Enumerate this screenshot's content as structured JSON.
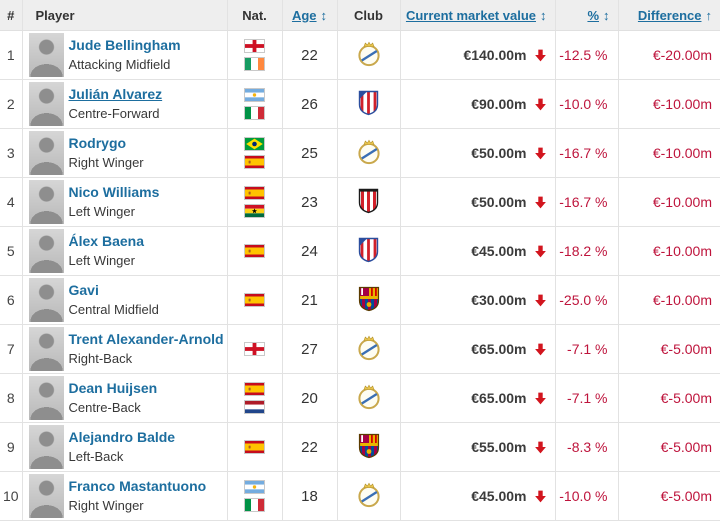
{
  "colors": {
    "link_blue": "#1d6e9f",
    "negative_red": "#be143c",
    "trend_arrow_red": "#d2151e",
    "header_bg": "#eeeeee",
    "row_border": "#e2e2e2"
  },
  "table": {
    "columns": [
      {
        "key": "rank",
        "label": "#",
        "sortable": false
      },
      {
        "key": "player",
        "label": "Player",
        "sortable": false
      },
      {
        "key": "nat",
        "label": "Nat.",
        "sortable": false
      },
      {
        "key": "age",
        "label": "Age",
        "sortable": true,
        "sort_glyph": "updown"
      },
      {
        "key": "club",
        "label": "Club",
        "sortable": false
      },
      {
        "key": "value",
        "label": "Current market value",
        "sortable": true,
        "sort_glyph": "updown"
      },
      {
        "key": "pct",
        "label": "%",
        "sortable": true,
        "sort_glyph": "updown"
      },
      {
        "key": "diff",
        "label": "Difference",
        "sortable": true,
        "sort_glyph": "up"
      }
    ],
    "rows": [
      {
        "rank": "1",
        "name": "Jude Bellingham",
        "position": "Attacking Midfield",
        "nationalities": [
          "England",
          "Ireland"
        ],
        "age": "22",
        "club": "Real Madrid",
        "market_value": "€140.00m",
        "trend": "down",
        "pct": "-12.5 %",
        "diff": "€-20.00m",
        "name_underlined": false
      },
      {
        "rank": "2",
        "name": "Julián Alvarez",
        "position": "Centre-Forward",
        "nationalities": [
          "Argentina",
          "Italy"
        ],
        "age": "26",
        "club": "Atlético Madrid",
        "market_value": "€90.00m",
        "trend": "down",
        "pct": "-10.0 %",
        "diff": "€-10.00m",
        "name_underlined": true
      },
      {
        "rank": "3",
        "name": "Rodrygo",
        "position": "Right Winger",
        "nationalities": [
          "Brazil",
          "Spain"
        ],
        "age": "25",
        "club": "Real Madrid",
        "market_value": "€50.00m",
        "trend": "down",
        "pct": "-16.7 %",
        "diff": "€-10.00m",
        "name_underlined": false
      },
      {
        "rank": "4",
        "name": "Nico Williams",
        "position": "Left Winger",
        "nationalities": [
          "Spain",
          "Ghana"
        ],
        "age": "23",
        "club": "Athletic Bilbao",
        "market_value": "€50.00m",
        "trend": "down",
        "pct": "-16.7 %",
        "diff": "€-10.00m",
        "name_underlined": false
      },
      {
        "rank": "5",
        "name": "Álex Baena",
        "position": "Left Winger",
        "nationalities": [
          "Spain"
        ],
        "age": "24",
        "club": "Atlético Madrid",
        "market_value": "€45.00m",
        "trend": "down",
        "pct": "-18.2 %",
        "diff": "€-10.00m",
        "name_underlined": false
      },
      {
        "rank": "6",
        "name": "Gavi",
        "position": "Central Midfield",
        "nationalities": [
          "Spain"
        ],
        "age": "21",
        "club": "FC Barcelona",
        "market_value": "€30.00m",
        "trend": "down",
        "pct": "-25.0 %",
        "diff": "€-10.00m",
        "name_underlined": false
      },
      {
        "rank": "7",
        "name": "Trent Alexander-Arnold",
        "position": "Right-Back",
        "nationalities": [
          "England"
        ],
        "age": "27",
        "club": "Real Madrid",
        "market_value": "€65.00m",
        "trend": "down",
        "pct": "-7.1 %",
        "diff": "€-5.00m",
        "name_underlined": false
      },
      {
        "rank": "8",
        "name": "Dean Huijsen",
        "position": "Centre-Back",
        "nationalities": [
          "Spain",
          "Netherlands"
        ],
        "age": "20",
        "club": "Real Madrid",
        "market_value": "€65.00m",
        "trend": "down",
        "pct": "-7.1 %",
        "diff": "€-5.00m",
        "name_underlined": false
      },
      {
        "rank": "9",
        "name": "Alejandro Balde",
        "position": "Left-Back",
        "nationalities": [
          "Spain"
        ],
        "age": "22",
        "club": "FC Barcelona",
        "market_value": "€55.00m",
        "trend": "down",
        "pct": "-8.3 %",
        "diff": "€-5.00m",
        "name_underlined": false
      },
      {
        "rank": "10",
        "name": "Franco Mastantuono",
        "position": "Right Winger",
        "nationalities": [
          "Argentina",
          "Italy"
        ],
        "age": "18",
        "club": "Real Madrid",
        "market_value": "€45.00m",
        "trend": "down",
        "pct": "-10.0 %",
        "diff": "€-5.00m",
        "name_underlined": false
      }
    ]
  }
}
